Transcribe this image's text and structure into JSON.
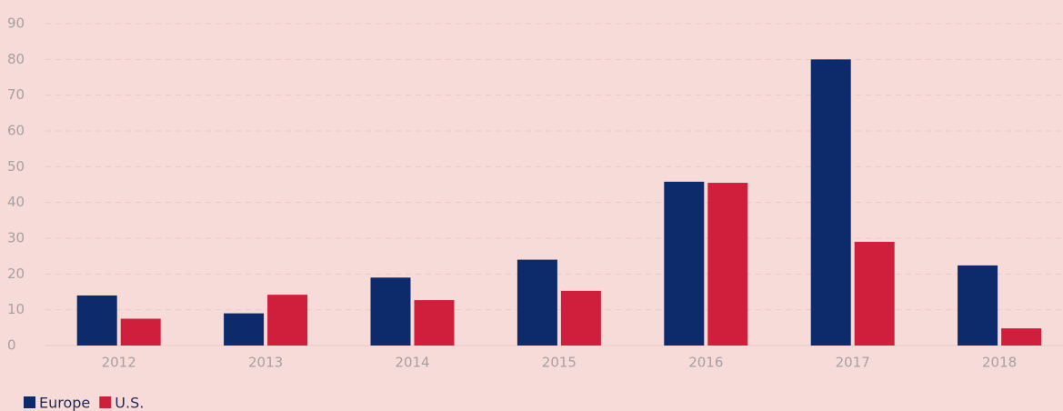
{
  "chart_data": {
    "type": "bar",
    "categories": [
      "2012",
      "2013",
      "2014",
      "2015",
      "2016",
      "2017",
      "2018"
    ],
    "series": [
      {
        "name": "Europe",
        "color": "#0d2a6b",
        "values": [
          14,
          9,
          19,
          24,
          45.8,
          80,
          22.4
        ]
      },
      {
        "name": "U.S.",
        "color": "#d01f3c",
        "values": [
          7.5,
          14.2,
          12.7,
          15.3,
          45.5,
          29,
          4.8
        ]
      }
    ],
    "ylim": [
      0,
      90
    ],
    "yticks": [
      0,
      10,
      20,
      30,
      40,
      50,
      60,
      70,
      80,
      90
    ],
    "grid": true,
    "legend": "bottom-left"
  }
}
